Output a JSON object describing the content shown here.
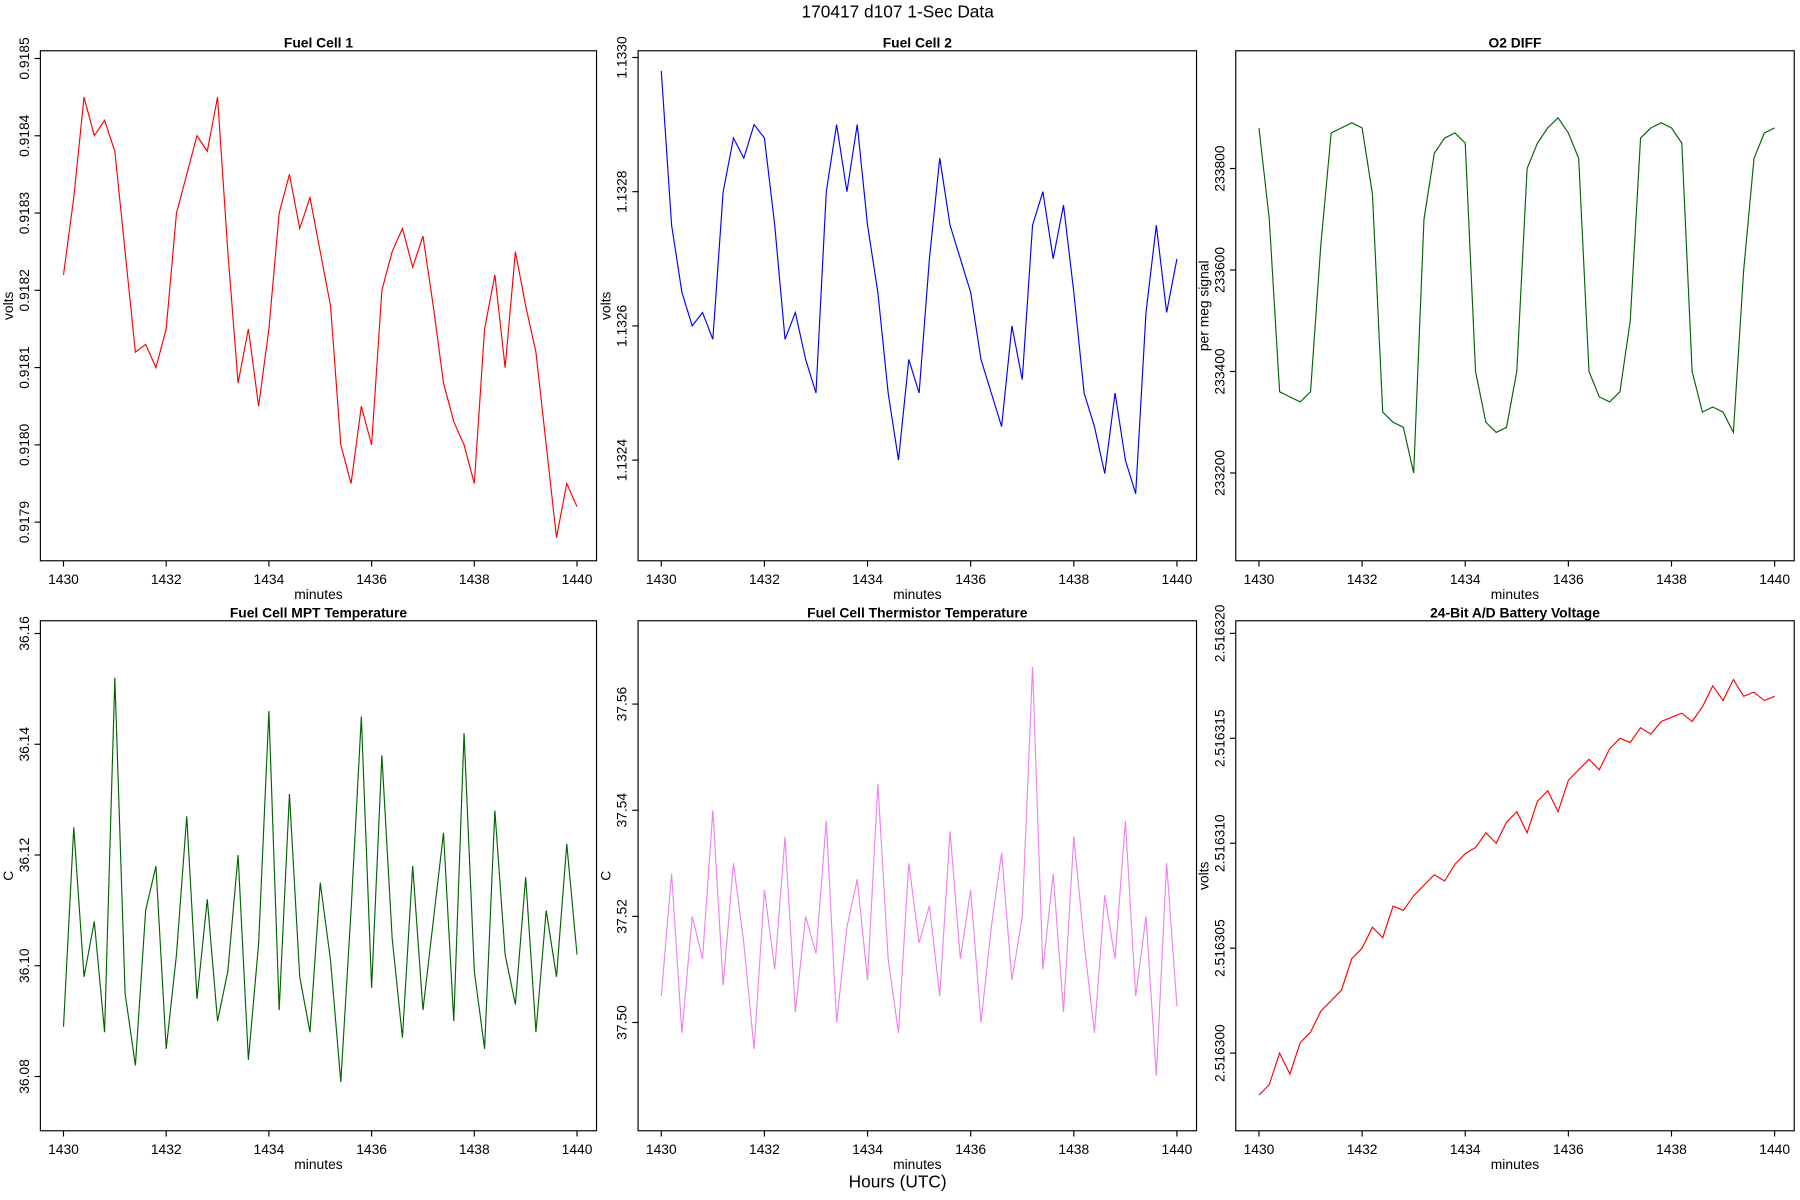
{
  "title": "170417   d107   1-Sec Data",
  "xlabel": "Hours (UTC)",
  "chart_data": [
    {
      "type": "line",
      "title": "Fuel Cell 1",
      "xlabel": "minutes",
      "ylabel": "volts",
      "color": "#ff0000",
      "x": [
        1430,
        1430.2,
        1430.4,
        1430.6,
        1430.8,
        1431,
        1431.2,
        1431.4,
        1431.6,
        1431.8,
        1432,
        1432.2,
        1432.4,
        1432.6,
        1432.8,
        1433,
        1433.2,
        1433.4,
        1433.6,
        1433.8,
        1434,
        1434.2,
        1434.4,
        1434.6,
        1434.8,
        1435,
        1435.2,
        1435.4,
        1435.6,
        1435.8,
        1436,
        1436.2,
        1436.4,
        1436.6,
        1436.8,
        1437,
        1437.2,
        1437.4,
        1437.6,
        1437.8,
        1438,
        1438.2,
        1438.4,
        1438.6,
        1438.8,
        1439,
        1439.2,
        1439.4,
        1439.6,
        1439.8,
        1440
      ],
      "values": [
        0.91822,
        0.91832,
        0.91845,
        0.9184,
        0.91842,
        0.91838,
        0.91825,
        0.91812,
        0.91813,
        0.9181,
        0.91815,
        0.9183,
        0.91835,
        0.9184,
        0.91838,
        0.91845,
        0.91825,
        0.91808,
        0.91815,
        0.91805,
        0.91815,
        0.9183,
        0.91835,
        0.91828,
        0.91832,
        0.91825,
        0.91818,
        0.918,
        0.91795,
        0.91805,
        0.918,
        0.9182,
        0.91825,
        0.91828,
        0.91823,
        0.91827,
        0.91818,
        0.91808,
        0.91803,
        0.918,
        0.91795,
        0.91815,
        0.91822,
        0.9181,
        0.91825,
        0.91818,
        0.91812,
        0.918,
        0.91788,
        0.91795,
        0.91792
      ],
      "xlim": [
        1429.55,
        1440.38
      ],
      "xticks": [
        1430,
        1432,
        1434,
        1436,
        1438,
        1440
      ],
      "ylim": [
        0.91785,
        0.91851
      ],
      "yticks": [
        {
          "value": 0.9179,
          "label": "0.9179"
        },
        {
          "value": 0.918,
          "label": "0.9180"
        },
        {
          "value": 0.9181,
          "label": "0.9181"
        },
        {
          "value": 0.9182,
          "label": "0.9182"
        },
        {
          "value": 0.9183,
          "label": "0.9183"
        },
        {
          "value": 0.9184,
          "label": "0.9184"
        },
        {
          "value": 0.9185,
          "label": "0.9185"
        }
      ]
    },
    {
      "type": "line",
      "title": "Fuel Cell 2",
      "xlabel": "minutes",
      "ylabel": "volts",
      "color": "#0000ff",
      "x": [
        1430,
        1430.2,
        1430.4,
        1430.6,
        1430.8,
        1431,
        1431.2,
        1431.4,
        1431.6,
        1431.8,
        1432,
        1432.2,
        1432.4,
        1432.6,
        1432.8,
        1433,
        1433.2,
        1433.4,
        1433.6,
        1433.8,
        1434,
        1434.2,
        1434.4,
        1434.6,
        1434.8,
        1435,
        1435.2,
        1435.4,
        1435.6,
        1435.8,
        1436,
        1436.2,
        1436.4,
        1436.6,
        1436.8,
        1437,
        1437.2,
        1437.4,
        1437.6,
        1437.8,
        1438,
        1438.2,
        1438.4,
        1438.6,
        1438.8,
        1439,
        1439.2,
        1439.4,
        1439.6,
        1439.8,
        1440
      ],
      "values": [
        1.13298,
        1.13275,
        1.13265,
        1.1326,
        1.13262,
        1.13258,
        1.1328,
        1.13288,
        1.13285,
        1.1329,
        1.13288,
        1.13275,
        1.13258,
        1.13262,
        1.13255,
        1.1325,
        1.1328,
        1.1329,
        1.1328,
        1.1329,
        1.13275,
        1.13265,
        1.1325,
        1.1324,
        1.13255,
        1.1325,
        1.1327,
        1.13285,
        1.13275,
        1.1327,
        1.13265,
        1.13255,
        1.1325,
        1.13245,
        1.1326,
        1.13252,
        1.13275,
        1.1328,
        1.1327,
        1.13278,
        1.13265,
        1.1325,
        1.13245,
        1.13238,
        1.1325,
        1.1324,
        1.13235,
        1.13262,
        1.13275,
        1.13262,
        1.1327
      ],
      "xlim": [
        1429.55,
        1440.38
      ],
      "xticks": [
        1430,
        1432,
        1434,
        1436,
        1438,
        1440
      ],
      "ylim": [
        1.13225,
        1.13301
      ],
      "yticks": [
        {
          "value": 1.1324,
          "label": "1.1324"
        },
        {
          "value": 1.1326,
          "label": "1.1326"
        },
        {
          "value": 1.1328,
          "label": "1.1328"
        },
        {
          "value": 1.133,
          "label": "1.1330"
        }
      ]
    },
    {
      "type": "line",
      "title": "O2 DIFF",
      "xlabel": "minutes",
      "ylabel": "per meg signal",
      "color": "#006400",
      "x": [
        1430,
        1430.2,
        1430.4,
        1430.6,
        1430.8,
        1431,
        1431.2,
        1431.4,
        1431.6,
        1431.8,
        1432,
        1432.2,
        1432.4,
        1432.6,
        1432.8,
        1433,
        1433.2,
        1433.4,
        1433.6,
        1433.8,
        1434,
        1434.2,
        1434.4,
        1434.6,
        1434.8,
        1435,
        1435.2,
        1435.4,
        1435.6,
        1435.8,
        1436,
        1436.2,
        1436.4,
        1436.6,
        1436.8,
        1437,
        1437.2,
        1437.4,
        1437.6,
        1437.8,
        1438,
        1438.2,
        1438.4,
        1438.6,
        1438.8,
        1439,
        1439.2,
        1439.4,
        1439.6,
        1439.8,
        1440
      ],
      "values": [
        233880,
        233700,
        233360,
        233350,
        233340,
        233360,
        233650,
        233870,
        233880,
        233890,
        233880,
        233750,
        233320,
        233300,
        233290,
        233200,
        233700,
        233830,
        233860,
        233870,
        233850,
        233400,
        233300,
        233280,
        233290,
        233400,
        233800,
        233850,
        233880,
        233900,
        233870,
        233820,
        233400,
        233350,
        233340,
        233360,
        233500,
        233860,
        233880,
        233890,
        233880,
        233850,
        233400,
        233320,
        233330,
        233320,
        233280,
        233600,
        233820,
        233870,
        233880
      ],
      "xlim": [
        1429.55,
        1440.38
      ],
      "xticks": [
        1430,
        1432,
        1434,
        1436,
        1438,
        1440
      ],
      "ylim": [
        233027,
        234032
      ],
      "yticks": [
        233200,
        233400,
        233600,
        233800
      ]
    },
    {
      "type": "line",
      "title": "Fuel Cell MPT Temperature",
      "xlabel": "minutes",
      "ylabel": "C",
      "color": "#006400",
      "x": [
        1430,
        1430.2,
        1430.4,
        1430.6,
        1430.8,
        1431,
        1431.2,
        1431.4,
        1431.6,
        1431.8,
        1432,
        1432.2,
        1432.4,
        1432.6,
        1432.8,
        1433,
        1433.2,
        1433.4,
        1433.6,
        1433.8,
        1434,
        1434.2,
        1434.4,
        1434.6,
        1434.8,
        1435,
        1435.2,
        1435.4,
        1435.6,
        1435.8,
        1436,
        1436.2,
        1436.4,
        1436.6,
        1436.8,
        1437,
        1437.2,
        1437.4,
        1437.6,
        1437.8,
        1438,
        1438.2,
        1438.4,
        1438.6,
        1438.8,
        1439,
        1439.2,
        1439.4,
        1439.6,
        1439.8,
        1440
      ],
      "values": [
        36.089,
        36.125,
        36.098,
        36.108,
        36.088,
        36.152,
        36.095,
        36.082,
        36.11,
        36.118,
        36.085,
        36.102,
        36.127,
        36.094,
        36.112,
        36.09,
        36.099,
        36.12,
        36.083,
        36.104,
        36.146,
        36.092,
        36.131,
        36.098,
        36.088,
        36.115,
        36.101,
        36.079,
        36.11,
        36.145,
        36.096,
        36.138,
        36.105,
        36.087,
        36.118,
        36.092,
        36.108,
        36.124,
        36.09,
        36.142,
        36.099,
        36.085,
        36.128,
        36.102,
        36.093,
        36.116,
        36.088,
        36.11,
        36.098,
        36.122,
        36.102
      ],
      "xlim": [
        1429.55,
        1440.38
      ],
      "xticks": [
        1430,
        1432,
        1434,
        1436,
        1438,
        1440
      ],
      "ylim": [
        36.0702,
        36.1623
      ],
      "yticks": [
        36.08,
        {
          "value": 36.1,
          "label": "36.10"
        },
        36.12,
        36.14,
        36.16
      ]
    },
    {
      "type": "line",
      "title": "Fuel Cell Thermistor Temperature",
      "xlabel": "minutes",
      "ylabel": "C",
      "color": "#ee82ee",
      "x": [
        1430,
        1430.2,
        1430.4,
        1430.6,
        1430.8,
        1431,
        1431.2,
        1431.4,
        1431.6,
        1431.8,
        1432,
        1432.2,
        1432.4,
        1432.6,
        1432.8,
        1433,
        1433.2,
        1433.4,
        1433.6,
        1433.8,
        1434,
        1434.2,
        1434.4,
        1434.6,
        1434.8,
        1435,
        1435.2,
        1435.4,
        1435.6,
        1435.8,
        1436,
        1436.2,
        1436.4,
        1436.6,
        1436.8,
        1437,
        1437.2,
        1437.4,
        1437.6,
        1437.8,
        1438,
        1438.2,
        1438.4,
        1438.6,
        1438.8,
        1439,
        1439.2,
        1439.4,
        1439.6,
        1439.8,
        1440
      ],
      "values": [
        37.505,
        37.528,
        37.498,
        37.52,
        37.512,
        37.54,
        37.507,
        37.53,
        37.515,
        37.495,
        37.525,
        37.51,
        37.535,
        37.502,
        37.52,
        37.513,
        37.538,
        37.5,
        37.518,
        37.527,
        37.508,
        37.545,
        37.512,
        37.498,
        37.53,
        37.515,
        37.522,
        37.505,
        37.536,
        37.512,
        37.525,
        37.5,
        37.518,
        37.532,
        37.508,
        37.52,
        37.567,
        37.51,
        37.528,
        37.502,
        37.535,
        37.515,
        37.498,
        37.524,
        37.512,
        37.538,
        37.505,
        37.52,
        37.49,
        37.53,
        37.503
      ],
      "xlim": [
        1429.55,
        1440.38
      ],
      "xticks": [
        1430,
        1432,
        1434,
        1436,
        1438,
        1440
      ],
      "ylim": [
        37.4796,
        37.5757
      ],
      "yticks": [
        {
          "value": 37.5,
          "label": "37.50"
        },
        37.52,
        37.54,
        37.56
      ]
    },
    {
      "type": "line",
      "title": "24-Bit A/D Battery Voltage",
      "xlabel": "minutes",
      "ylabel": "volts",
      "color": "#ff0000",
      "x": [
        1430,
        1430.2,
        1430.4,
        1430.6,
        1430.8,
        1431,
        1431.2,
        1431.4,
        1431.6,
        1431.8,
        1432,
        1432.2,
        1432.4,
        1432.6,
        1432.8,
        1433,
        1433.2,
        1433.4,
        1433.6,
        1433.8,
        1434,
        1434.2,
        1434.4,
        1434.6,
        1434.8,
        1435,
        1435.2,
        1435.4,
        1435.6,
        1435.8,
        1436,
        1436.2,
        1436.4,
        1436.6,
        1436.8,
        1437,
        1437.2,
        1437.4,
        1437.6,
        1437.8,
        1438,
        1438.2,
        1438.4,
        1438.6,
        1438.8,
        1439,
        1439.2,
        1439.4,
        1439.6,
        1439.8,
        1440
      ],
      "values": [
        2.516298,
        2.5162985,
        2.5163,
        2.516299,
        2.5163005,
        2.516301,
        2.516302,
        2.5163025,
        2.516303,
        2.5163045,
        2.516305,
        2.516306,
        2.5163055,
        2.516307,
        2.5163068,
        2.5163075,
        2.516308,
        2.5163085,
        2.5163082,
        2.516309,
        2.5163095,
        2.5163098,
        2.5163105,
        2.51631,
        2.516311,
        2.5163115,
        2.5163105,
        2.516312,
        2.5163125,
        2.5163115,
        2.516313,
        2.5163135,
        2.516314,
        2.5163135,
        2.5163145,
        2.516315,
        2.5163148,
        2.5163155,
        2.5163152,
        2.5163158,
        2.516316,
        2.5163162,
        2.5163158,
        2.5163165,
        2.5163175,
        2.5163168,
        2.5163178,
        2.516317,
        2.5163172,
        2.5163168,
        2.516317
      ],
      "xlim": [
        1429.55,
        1440.38
      ],
      "xticks": [
        1430,
        1432,
        1434,
        1436,
        1438,
        1440
      ],
      "ylim": [
        2.5162963,
        2.5163206
      ],
      "yticks": [
        {
          "value": 2.5163,
          "label": "2.516300"
        },
        2.516305,
        {
          "value": 2.51631,
          "label": "2.516310"
        },
        2.516315,
        {
          "value": 2.51632,
          "label": "2.516320"
        }
      ]
    }
  ]
}
